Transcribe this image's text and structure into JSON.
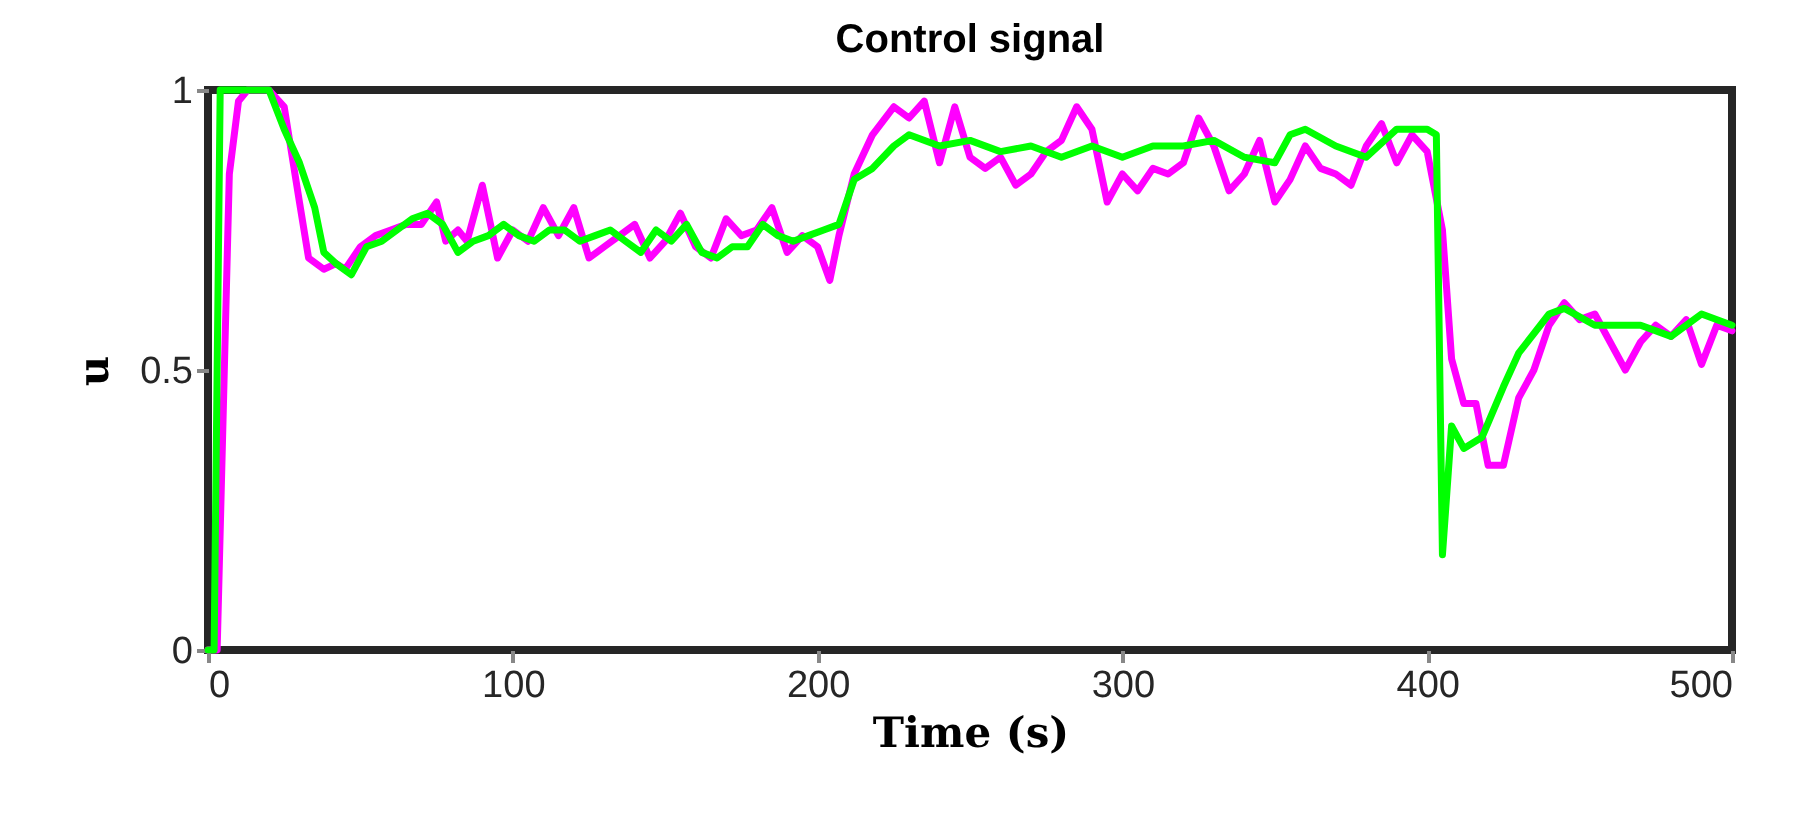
{
  "chart_data": {
    "type": "line",
    "title": "Control signal",
    "xlabel": "Time (s)",
    "ylabel": "u",
    "xlim": [
      0,
      500
    ],
    "xticks": [
      0,
      100,
      200,
      300,
      400,
      500
    ],
    "ylim": [
      0,
      1
    ],
    "yticks": [
      0,
      0.5,
      1
    ],
    "grid": false,
    "line_style": "solid",
    "marker": "none",
    "series": [
      {
        "color": "#ff00ff",
        "x": [
          0,
          3,
          7,
          10,
          13,
          20,
          25,
          30,
          33,
          38,
          42,
          45,
          50,
          55,
          60,
          65,
          70,
          75,
          78,
          82,
          85,
          90,
          95,
          100,
          105,
          110,
          115,
          120,
          125,
          130,
          135,
          140,
          145,
          150,
          155,
          160,
          165,
          170,
          175,
          180,
          185,
          190,
          195,
          200,
          204,
          207,
          212,
          218,
          225,
          230,
          235,
          240,
          245,
          250,
          255,
          260,
          265,
          270,
          275,
          280,
          285,
          290,
          295,
          300,
          305,
          310,
          315,
          320,
          325,
          330,
          335,
          340,
          345,
          350,
          355,
          360,
          365,
          370,
          375,
          380,
          385,
          390,
          395,
          400,
          405,
          408,
          412,
          416,
          420,
          425,
          430,
          435,
          440,
          445,
          450,
          455,
          460,
          465,
          470,
          475,
          480,
          485,
          490,
          495,
          500
        ],
        "values": [
          0,
          0,
          0.85,
          0.98,
          1,
          1,
          0.97,
          0.8,
          0.7,
          0.68,
          0.69,
          0.68,
          0.72,
          0.74,
          0.75,
          0.76,
          0.76,
          0.8,
          0.73,
          0.75,
          0.73,
          0.83,
          0.7,
          0.75,
          0.73,
          0.79,
          0.74,
          0.79,
          0.7,
          0.72,
          0.74,
          0.76,
          0.7,
          0.73,
          0.78,
          0.72,
          0.7,
          0.77,
          0.74,
          0.75,
          0.79,
          0.71,
          0.74,
          0.72,
          0.66,
          0.74,
          0.85,
          0.92,
          0.97,
          0.95,
          0.98,
          0.87,
          0.97,
          0.88,
          0.86,
          0.88,
          0.83,
          0.85,
          0.89,
          0.91,
          0.97,
          0.93,
          0.8,
          0.85,
          0.82,
          0.86,
          0.85,
          0.87,
          0.95,
          0.9,
          0.82,
          0.85,
          0.91,
          0.8,
          0.84,
          0.9,
          0.86,
          0.85,
          0.83,
          0.9,
          0.94,
          0.87,
          0.92,
          0.89,
          0.75,
          0.52,
          0.44,
          0.44,
          0.33,
          0.33,
          0.45,
          0.5,
          0.58,
          0.62,
          0.59,
          0.6,
          0.55,
          0.5,
          0.55,
          0.58,
          0.56,
          0.59,
          0.51,
          0.58,
          0.57
        ]
      },
      {
        "color": "#00ff00",
        "x": [
          0,
          2,
          4,
          20,
          25,
          30,
          35,
          38,
          42,
          47,
          52,
          57,
          62,
          67,
          72,
          77,
          82,
          87,
          92,
          97,
          102,
          107,
          112,
          117,
          122,
          127,
          132,
          137,
          142,
          147,
          152,
          157,
          162,
          167,
          172,
          177,
          182,
          187,
          192,
          197,
          202,
          207,
          212,
          218,
          225,
          230,
          240,
          250,
          260,
          270,
          280,
          290,
          300,
          310,
          320,
          330,
          340,
          350,
          355,
          360,
          370,
          380,
          390,
          400,
          403,
          405,
          408,
          412,
          418,
          425,
          430,
          440,
          445,
          455,
          470,
          480,
          490,
          500
        ],
        "values": [
          0,
          0,
          1,
          1,
          0.93,
          0.87,
          0.79,
          0.71,
          0.69,
          0.67,
          0.72,
          0.73,
          0.75,
          0.77,
          0.78,
          0.76,
          0.71,
          0.73,
          0.74,
          0.76,
          0.74,
          0.73,
          0.75,
          0.75,
          0.73,
          0.74,
          0.75,
          0.73,
          0.71,
          0.75,
          0.73,
          0.76,
          0.71,
          0.7,
          0.72,
          0.72,
          0.76,
          0.74,
          0.73,
          0.74,
          0.75,
          0.76,
          0.84,
          0.86,
          0.9,
          0.92,
          0.9,
          0.91,
          0.89,
          0.9,
          0.88,
          0.9,
          0.88,
          0.9,
          0.9,
          0.91,
          0.88,
          0.87,
          0.92,
          0.93,
          0.9,
          0.88,
          0.93,
          0.93,
          0.92,
          0.17,
          0.4,
          0.36,
          0.38,
          0.47,
          0.53,
          0.6,
          0.61,
          0.58,
          0.58,
          0.56,
          0.6,
          0.58
        ]
      }
    ]
  }
}
